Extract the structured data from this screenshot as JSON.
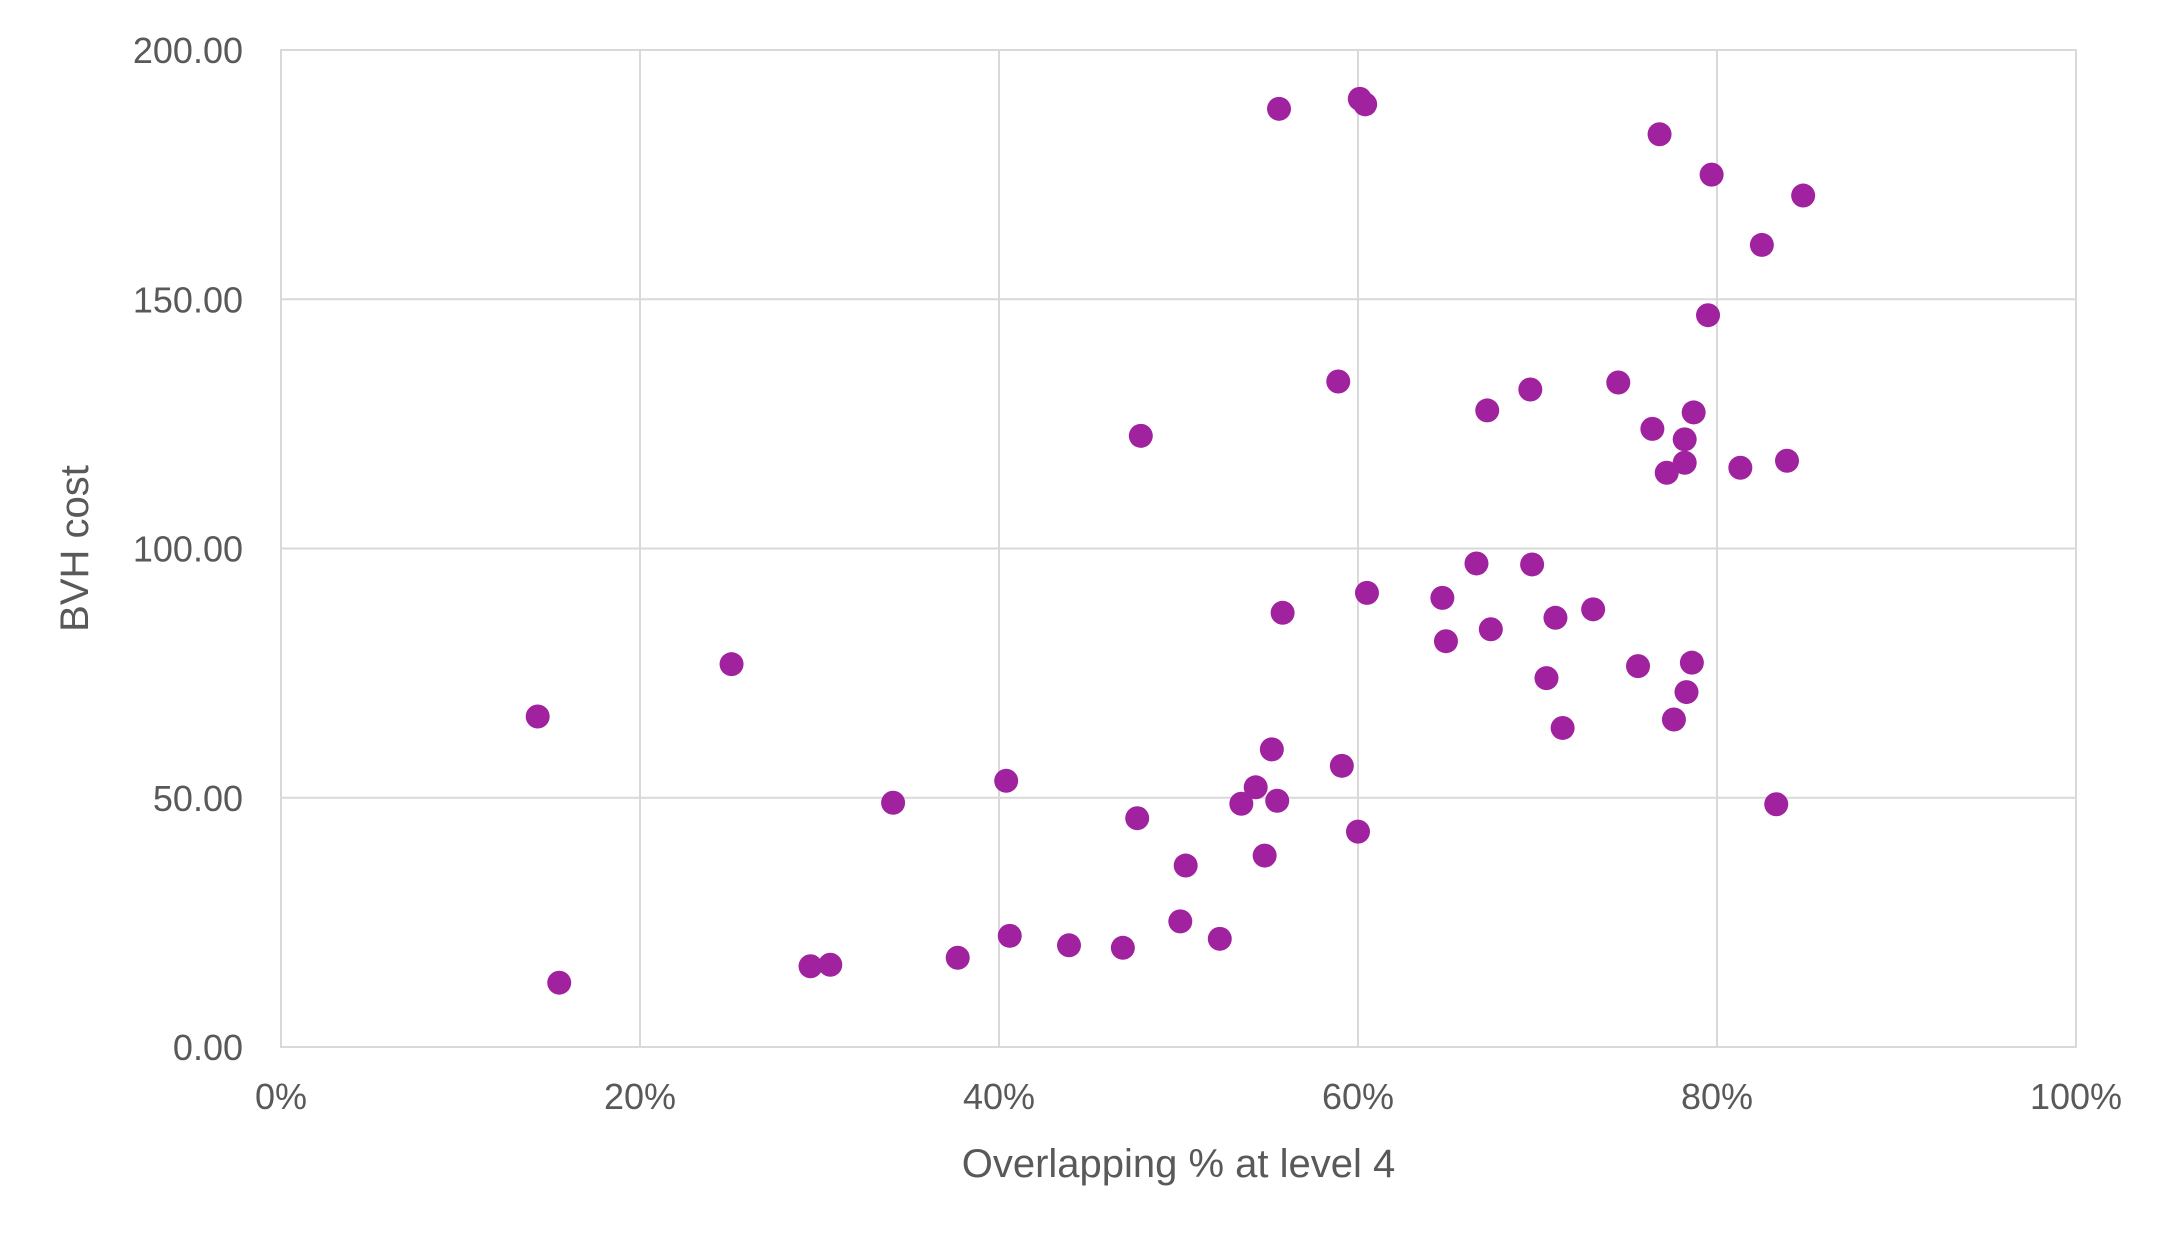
{
  "chart_data": {
    "type": "scatter",
    "title": "",
    "xlabel": "Overlapping % at level 4",
    "ylabel": "BVH cost",
    "xlim": [
      0,
      1
    ],
    "ylim": [
      0,
      200
    ],
    "x_ticks": [
      0,
      0.2,
      0.4,
      0.6,
      0.8,
      1.0
    ],
    "x_tick_labels": [
      "0%",
      "20%",
      "40%",
      "60%",
      "80%",
      "100%"
    ],
    "y_ticks": [
      0,
      50,
      100,
      150,
      200
    ],
    "y_tick_labels": [
      "0.00",
      "50.00",
      "100.00",
      "150.00",
      "200.00"
    ],
    "grid": true,
    "legend": "none",
    "marker_color": "#A0229F",
    "series": [
      {
        "points": [
          [
            0.143,
            66.3
          ],
          [
            0.155,
            12.9
          ],
          [
            0.251,
            76.8
          ],
          [
            0.295,
            16.2
          ],
          [
            0.306,
            16.5
          ],
          [
            0.341,
            49.0
          ],
          [
            0.377,
            17.9
          ],
          [
            0.404,
            53.4
          ],
          [
            0.406,
            22.3
          ],
          [
            0.439,
            20.4
          ],
          [
            0.469,
            19.9
          ],
          [
            0.477,
            45.9
          ],
          [
            0.479,
            122.6
          ],
          [
            0.501,
            25.2
          ],
          [
            0.504,
            36.4
          ],
          [
            0.523,
            21.7
          ],
          [
            0.535,
            48.8
          ],
          [
            0.543,
            52.1
          ],
          [
            0.548,
            38.4
          ],
          [
            0.552,
            59.7
          ],
          [
            0.555,
            49.4
          ],
          [
            0.556,
            188.2
          ],
          [
            0.558,
            87.1
          ],
          [
            0.589,
            133.5
          ],
          [
            0.591,
            56.4
          ],
          [
            0.6,
            43.2
          ],
          [
            0.601,
            190.2
          ],
          [
            0.604,
            189.1
          ],
          [
            0.605,
            91.1
          ],
          [
            0.647,
            90.1
          ],
          [
            0.649,
            81.4
          ],
          [
            0.666,
            97.0
          ],
          [
            0.672,
            127.7
          ],
          [
            0.674,
            83.8
          ],
          [
            0.696,
            131.9
          ],
          [
            0.697,
            96.8
          ],
          [
            0.705,
            74.0
          ],
          [
            0.71,
            86.1
          ],
          [
            0.714,
            64.0
          ],
          [
            0.731,
            87.8
          ],
          [
            0.745,
            133.3
          ],
          [
            0.756,
            76.4
          ],
          [
            0.764,
            124.0
          ],
          [
            0.768,
            183.1
          ],
          [
            0.772,
            115.2
          ],
          [
            0.776,
            65.7
          ],
          [
            0.782,
            117.2
          ],
          [
            0.782,
            121.9
          ],
          [
            0.783,
            71.2
          ],
          [
            0.786,
            77.1
          ],
          [
            0.787,
            127.3
          ],
          [
            0.795,
            146.8
          ],
          [
            0.797,
            175.0
          ],
          [
            0.813,
            116.2
          ],
          [
            0.825,
            160.9
          ],
          [
            0.833,
            48.7
          ],
          [
            0.839,
            117.6
          ],
          [
            0.848,
            170.8
          ]
        ]
      }
    ]
  }
}
